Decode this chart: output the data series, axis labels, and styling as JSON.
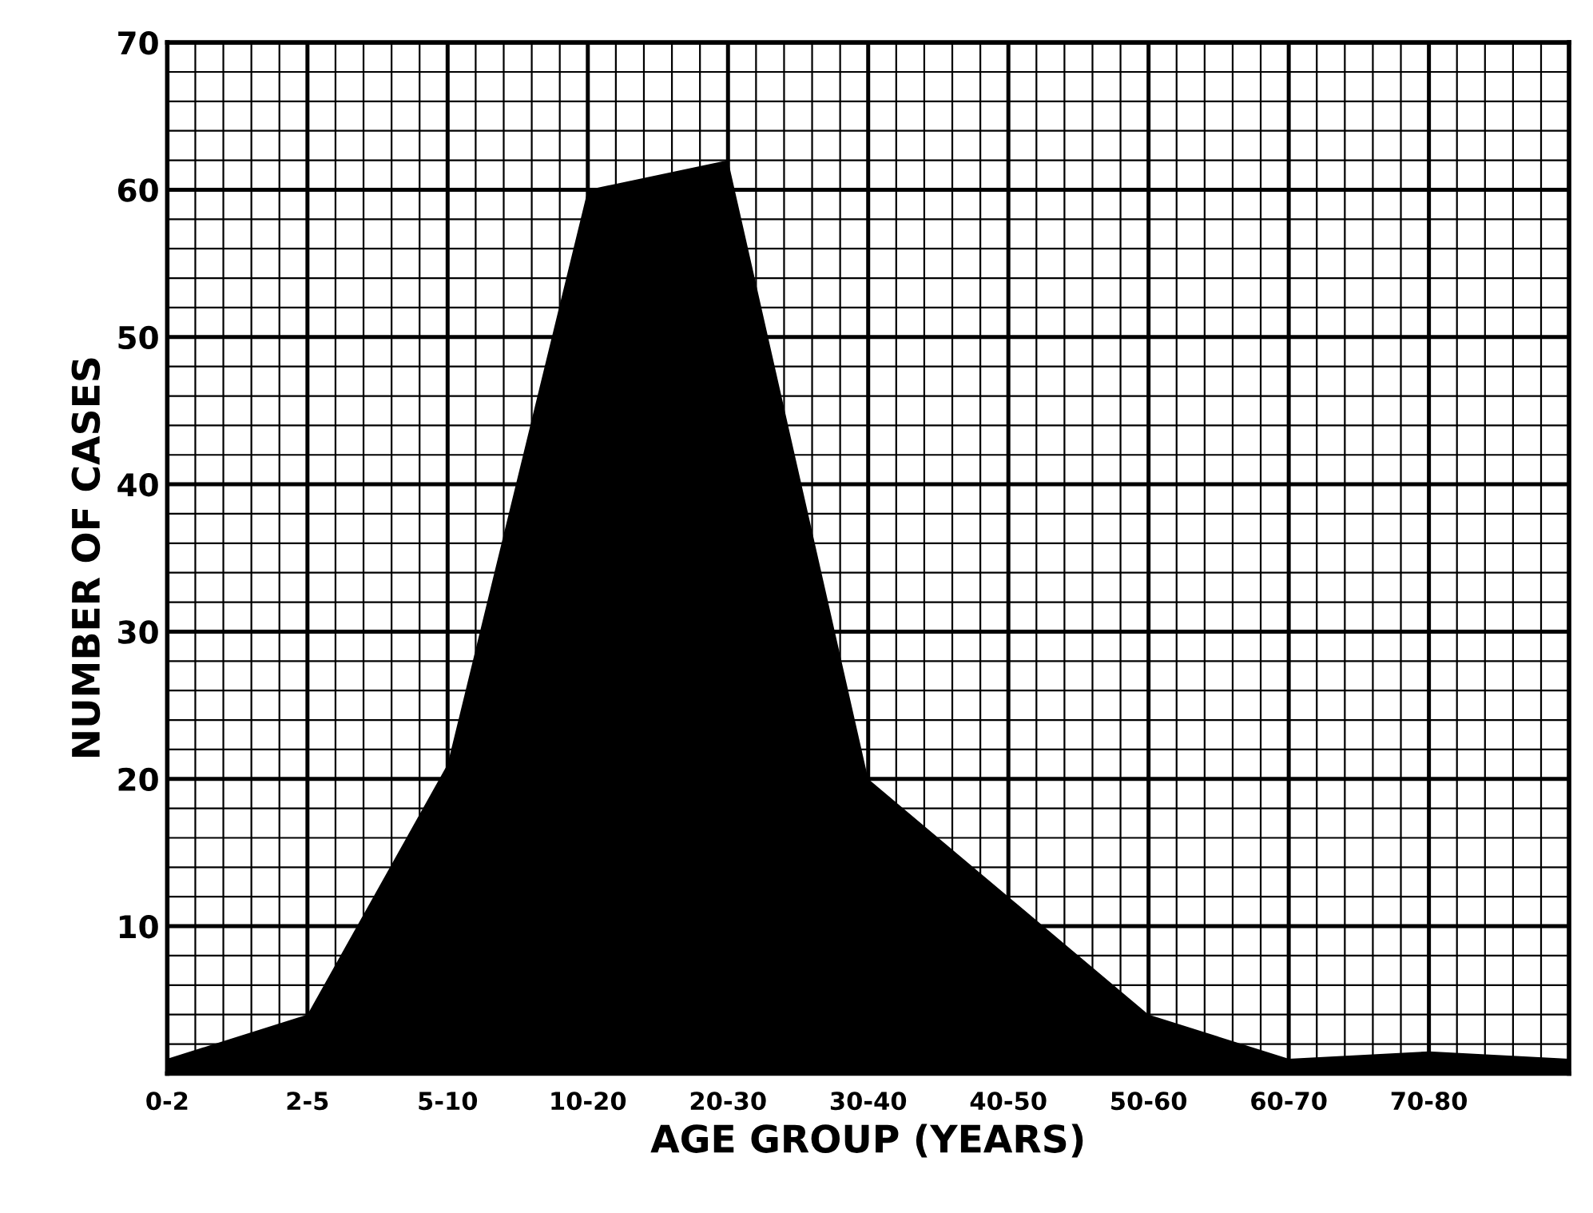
{
  "chart_data": {
    "type": "area",
    "xlabel": "AGE GROUP (YEARS)",
    "ylabel": "NUMBER OF CASES",
    "categories": [
      "0-2",
      "2-5",
      "5-10",
      "10-20",
      "20-30",
      "30-40",
      "40-50",
      "50-60",
      "60-70",
      "70-80",
      null
    ],
    "values": [
      1,
      4,
      21,
      60,
      62,
      20,
      12,
      4,
      1,
      1.5,
      1
    ],
    "color": "#000000",
    "ylim": [
      0,
      70
    ],
    "yticks": [
      {
        "value": 0,
        "label": null
      },
      10,
      20,
      30,
      40,
      50,
      60,
      70
    ],
    "grid": true
  }
}
